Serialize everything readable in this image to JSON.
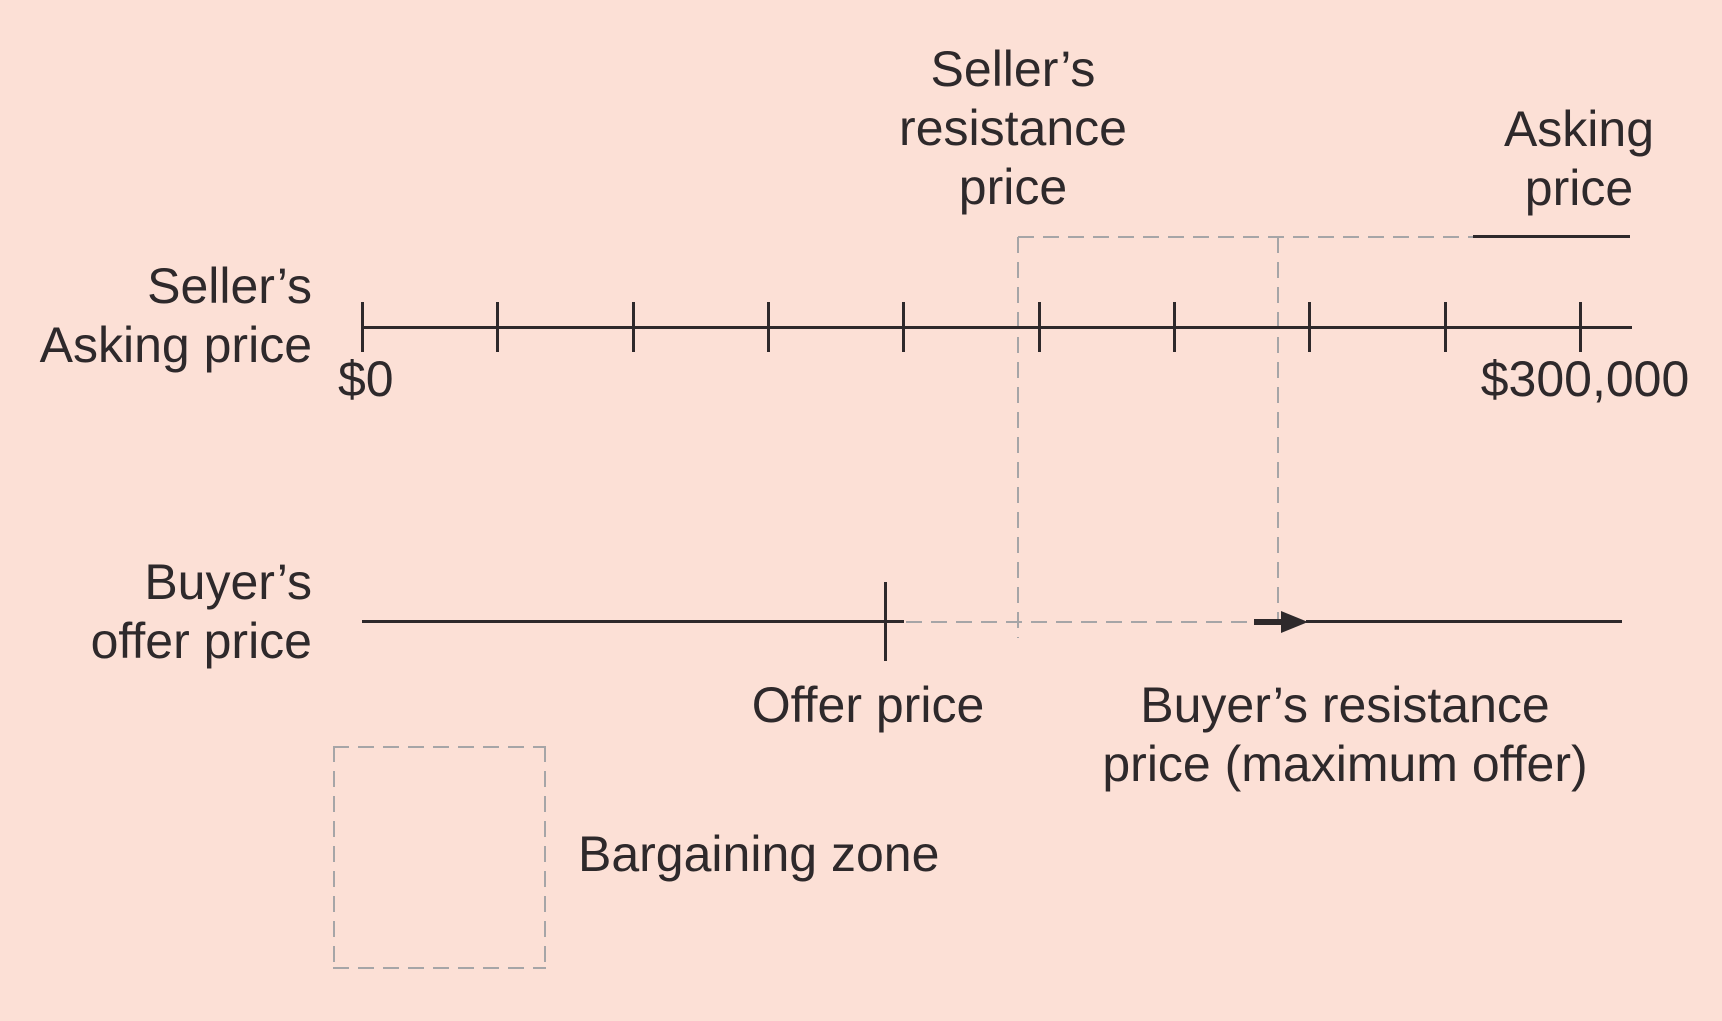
{
  "colors": {
    "background": "#fce0d6",
    "ink": "#2e292b",
    "dash": "#a6a5a7"
  },
  "seller_axis": {
    "side_label_lines": [
      "Seller’s",
      "Asking price"
    ],
    "start_value": "$0",
    "end_value": "$300,000",
    "tick_count": 10
  },
  "buyer_axis": {
    "side_label_lines": [
      "Buyer’s",
      "offer price"
    ],
    "offer_marker_label": "Offer price",
    "resistance_label_lines": [
      "Buyer’s resistance",
      "price (maximum offer)"
    ]
  },
  "callouts": {
    "seller_resistance_lines": [
      "Seller’s",
      "resistance",
      "price"
    ],
    "asking_price_lines": [
      "Asking",
      "price"
    ]
  },
  "legend": {
    "label": "Bargaining zone"
  }
}
